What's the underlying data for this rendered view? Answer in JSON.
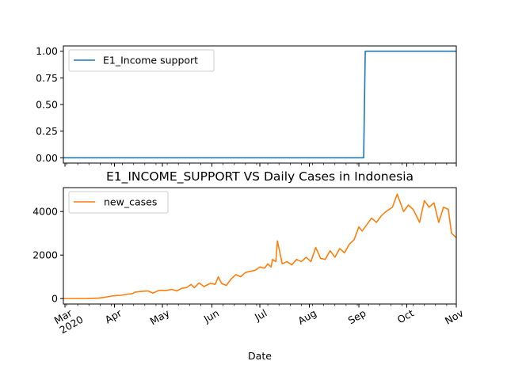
{
  "chart_data": [
    {
      "type": "line",
      "title": "",
      "xlabel": "",
      "ylabel": "",
      "x_range": [
        "2020-02-29",
        "2020-11-01"
      ],
      "ylim": [
        -0.05,
        1.05
      ],
      "yticks": [
        "0.00",
        "0.25",
        "0.50",
        "0.75",
        "1.00"
      ],
      "legend_position": "upper-left",
      "series": [
        {
          "name": "E1_Income support",
          "color": "#1f77b4",
          "x": [
            "2020-02-29",
            "2020-09-04",
            "2020-09-05",
            "2020-11-01"
          ],
          "y": [
            0,
            0,
            1,
            1
          ]
        }
      ]
    },
    {
      "type": "line",
      "title": "E1_INCOME_SUPPORT VS Daily Cases in Indonesia",
      "xlabel": "Date",
      "ylabel": "",
      "x_range": [
        "2020-02-29",
        "2020-11-01"
      ],
      "ylim": [
        -250,
        5100
      ],
      "yticks": [
        "0",
        "2000",
        "4000"
      ],
      "xticks": [
        {
          "label": "Mar",
          "sub": "2020"
        },
        {
          "label": "Apr"
        },
        {
          "label": "May"
        },
        {
          "label": "Jun"
        },
        {
          "label": "Jul"
        },
        {
          "label": "Aug"
        },
        {
          "label": "Sep"
        },
        {
          "label": "Oct"
        },
        {
          "label": "Nov"
        }
      ],
      "legend_position": "upper-left",
      "series": [
        {
          "name": "new_cases",
          "color": "#ff7f0e",
          "x": [
            "2020-02-29",
            "2020-03-15",
            "2020-03-22",
            "2020-03-26",
            "2020-03-30",
            "2020-04-02",
            "2020-04-05",
            "2020-04-09",
            "2020-04-12",
            "2020-04-14",
            "2020-04-18",
            "2020-04-22",
            "2020-04-25",
            "2020-04-29",
            "2020-05-03",
            "2020-05-07",
            "2020-05-10",
            "2020-05-13",
            "2020-05-16",
            "2020-05-19",
            "2020-05-21",
            "2020-05-24",
            "2020-05-27",
            "2020-05-31",
            "2020-06-03",
            "2020-06-05",
            "2020-06-07",
            "2020-06-10",
            "2020-06-13",
            "2020-06-16",
            "2020-06-19",
            "2020-06-22",
            "2020-06-25",
            "2020-06-28",
            "2020-07-01",
            "2020-07-04",
            "2020-07-06",
            "2020-07-08",
            "2020-07-09",
            "2020-07-11",
            "2020-07-12",
            "2020-07-15",
            "2020-07-18",
            "2020-07-21",
            "2020-07-24",
            "2020-07-27",
            "2020-07-30",
            "2020-08-02",
            "2020-08-05",
            "2020-08-08",
            "2020-08-11",
            "2020-08-14",
            "2020-08-17",
            "2020-08-20",
            "2020-08-23",
            "2020-08-26",
            "2020-08-29",
            "2020-09-01",
            "2020-09-03",
            "2020-09-06",
            "2020-09-09",
            "2020-09-12",
            "2020-09-15",
            "2020-09-18",
            "2020-09-22",
            "2020-09-25",
            "2020-09-29",
            "2020-10-02",
            "2020-10-05",
            "2020-10-09",
            "2020-10-12",
            "2020-10-15",
            "2020-10-18",
            "2020-10-21",
            "2020-10-24",
            "2020-10-27",
            "2020-10-29",
            "2020-11-01"
          ],
          "y": [
            0,
            2,
            20,
            60,
            110,
            140,
            150,
            200,
            220,
            300,
            330,
            350,
            250,
            380,
            370,
            420,
            350,
            470,
            500,
            650,
            500,
            720,
            550,
            700,
            650,
            1000,
            700,
            600,
            900,
            1100,
            1000,
            1200,
            1250,
            1300,
            1450,
            1400,
            1600,
            1450,
            1800,
            1700,
            2650,
            1600,
            1700,
            1550,
            1800,
            1700,
            1900,
            1700,
            2350,
            1850,
            1800,
            2200,
            1900,
            2300,
            2100,
            2500,
            2700,
            3300,
            3100,
            3400,
            3700,
            3500,
            3800,
            4000,
            4200,
            4800,
            4000,
            4300,
            4100,
            3500,
            4500,
            4200,
            4400,
            3500,
            4200,
            4100,
            3000,
            2800
          ]
        }
      ]
    }
  ]
}
